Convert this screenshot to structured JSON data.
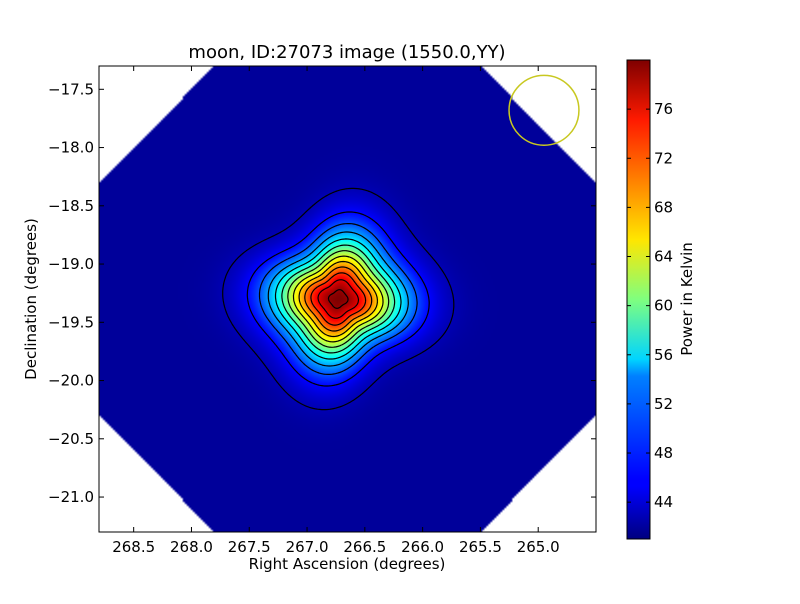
{
  "chart_data": {
    "type": "heatmap",
    "title": "moon, ID:27073 image (1550.0,YY)",
    "xlabel": "Right Ascension (degrees)",
    "ylabel": "Declination (degrees)",
    "colorbar_label": "Power in Kelvin",
    "colormap": "jet",
    "x_axis_reversed": true,
    "xlim": [
      268.8,
      264.5
    ],
    "ylim": [
      -21.3,
      -17.3
    ],
    "x_ticks": [
      268.5,
      268.0,
      267.5,
      267.0,
      266.5,
      266.0,
      265.5,
      265.0
    ],
    "x_tick_labels": [
      "268.5",
      "268.0",
      "267.5",
      "267.0",
      "266.5",
      "266.0",
      "265.5",
      "265.0"
    ],
    "y_ticks": [
      -17.5,
      -18.0,
      -18.5,
      -19.0,
      -19.5,
      -20.0,
      -20.5,
      -21.0
    ],
    "y_tick_labels": [
      "−17.5",
      "−18.0",
      "−18.5",
      "−19.0",
      "−19.5",
      "−20.0",
      "−20.5",
      "−21.0"
    ],
    "colorbar_range": [
      41,
      80
    ],
    "colorbar_ticks": [
      44,
      48,
      52,
      56,
      60,
      64,
      68,
      72,
      76
    ],
    "colorbar_tick_labels": [
      "44",
      "48",
      "52",
      "56",
      "60",
      "64",
      "68",
      "72",
      "76"
    ],
    "peak": {
      "ra": 266.73,
      "dec": -19.3,
      "value": 80
    },
    "background_value": 42,
    "beam_circle": {
      "ra": 264.95,
      "dec": -17.68,
      "radius_deg": 0.3,
      "color": "#c8c820"
    },
    "contour_levels": [
      43,
      46,
      49,
      52,
      55,
      58,
      61,
      64,
      67,
      70,
      73,
      76,
      79
    ],
    "grid": false
  }
}
